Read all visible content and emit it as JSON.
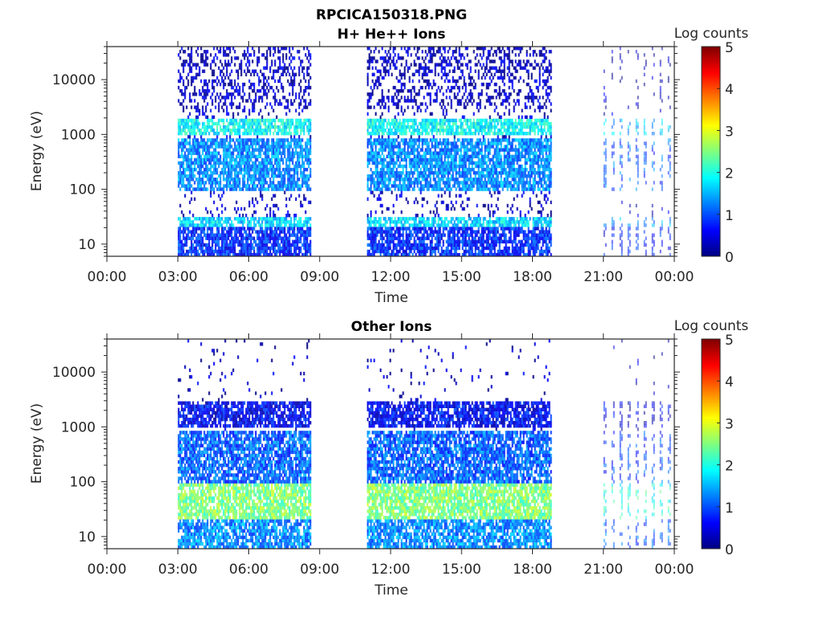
{
  "figure_title": "RPCICA150318.PNG",
  "chart_data": [
    {
      "type": "heatmap",
      "title": "H+ He++ Ions",
      "xlabel": "Time",
      "ylabel": "Energy (eV)",
      "x_ticks": [
        "00:00",
        "03:00",
        "06:00",
        "09:00",
        "12:00",
        "15:00",
        "18:00",
        "21:00",
        "00:00"
      ],
      "xlim_hours": [
        0,
        24
      ],
      "y_scale": "log",
      "y_ticks": [
        "10",
        "100",
        "1000",
        "10000"
      ],
      "ylim": [
        6,
        40000
      ],
      "colorbar": {
        "label": "Log counts",
        "ticks": [
          "0",
          "1",
          "2",
          "3",
          "4",
          "5"
        ],
        "range": [
          0,
          5
        ],
        "colormap": "jet"
      },
      "data_intervals_hours": [
        [
          3.0,
          8.6
        ],
        [
          11.0,
          18.8
        ],
        [
          21.0,
          24.0
        ]
      ],
      "bands": [
        {
          "e_min": 1000,
          "e_max": 2000,
          "log_counts": 1.9
        },
        {
          "e_min": 100,
          "e_max": 900,
          "log_counts": 1.3
        },
        {
          "e_min": 20,
          "e_max": 30,
          "log_counts": 1.7
        },
        {
          "e_min": 6,
          "e_max": 20,
          "log_counts": 0.8
        }
      ]
    },
    {
      "type": "heatmap",
      "title": "Other Ions",
      "xlabel": "Time",
      "ylabel": "Energy (eV)",
      "x_ticks": [
        "00:00",
        "03:00",
        "06:00",
        "09:00",
        "12:00",
        "15:00",
        "18:00",
        "21:00",
        "00:00"
      ],
      "xlim_hours": [
        0,
        24
      ],
      "y_scale": "log",
      "y_ticks": [
        "10",
        "100",
        "1000",
        "10000"
      ],
      "ylim": [
        6,
        40000
      ],
      "colorbar": {
        "label": "Log counts",
        "ticks": [
          "0",
          "1",
          "2",
          "3",
          "4",
          "5"
        ],
        "range": [
          0,
          5
        ],
        "colormap": "jet"
      },
      "data_intervals_hours": [
        [
          3.0,
          8.6
        ],
        [
          11.0,
          18.8
        ],
        [
          21.0,
          24.0
        ]
      ],
      "bands": [
        {
          "e_min": 1000,
          "e_max": 3000,
          "log_counts": 0.6
        },
        {
          "e_min": 100,
          "e_max": 800,
          "log_counts": 1.1
        },
        {
          "e_min": 20,
          "e_max": 100,
          "log_counts": 2.5
        },
        {
          "e_min": 6,
          "e_max": 20,
          "log_counts": 1.3
        }
      ]
    }
  ]
}
